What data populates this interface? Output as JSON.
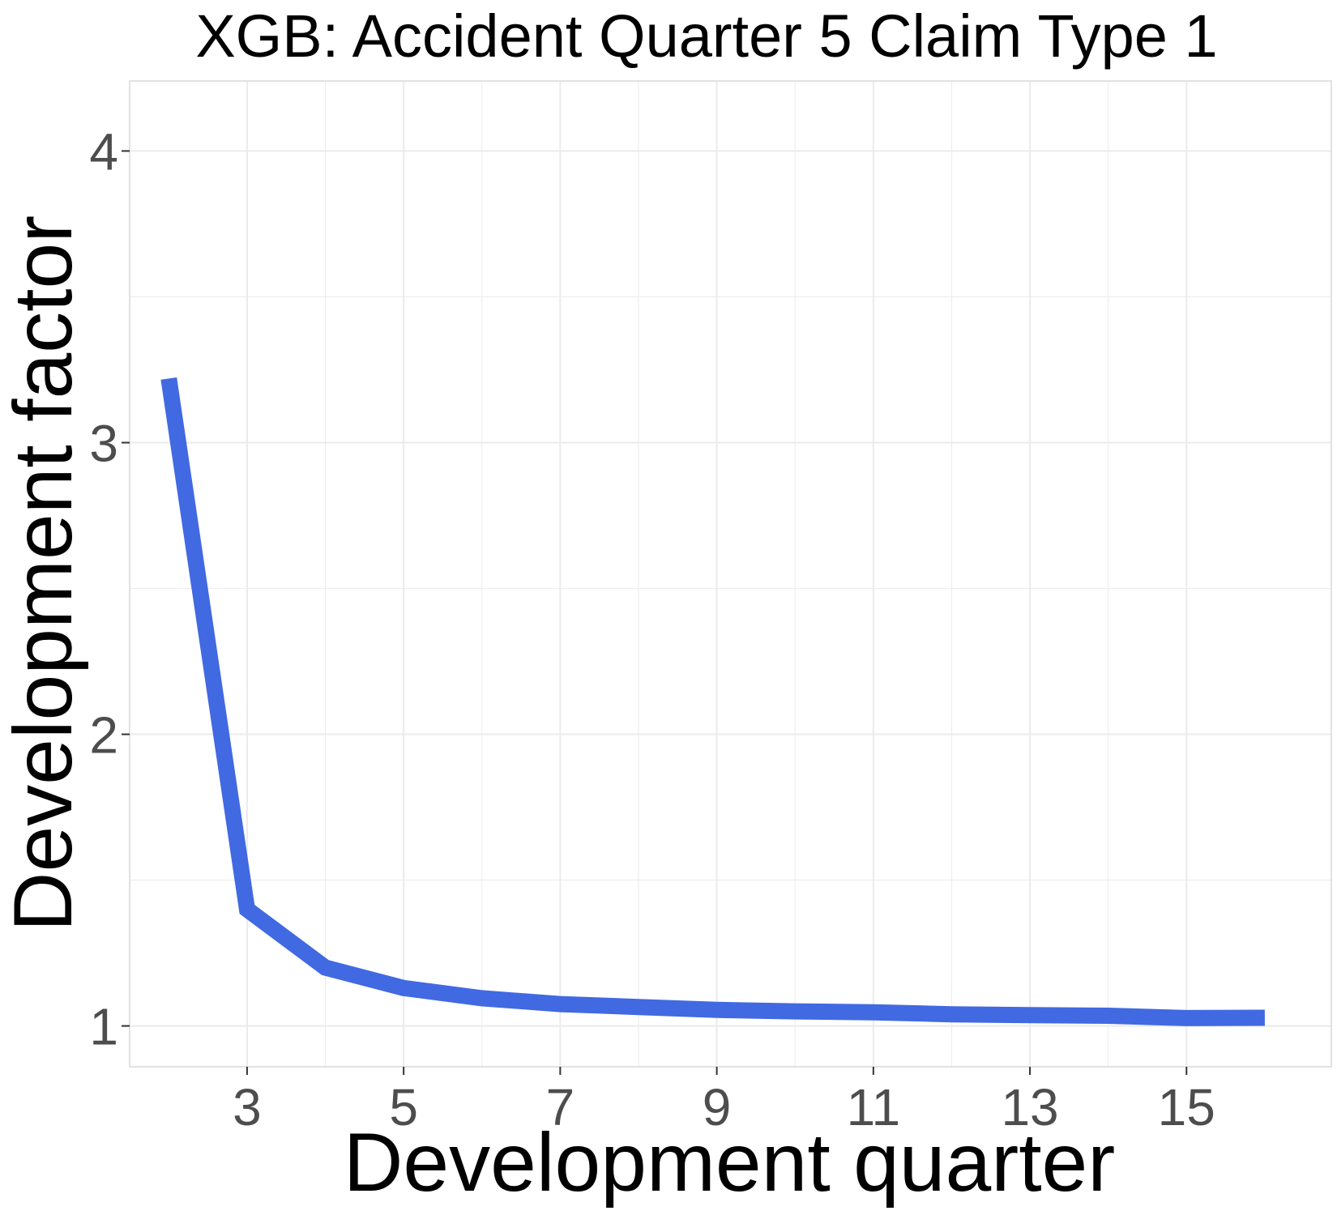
{
  "chart_data": {
    "type": "line",
    "title": "XGB: Accident Quarter 5 Claim Type 1",
    "xlabel": "Development quarter",
    "ylabel": "Development factor",
    "x": [
      2,
      3,
      4,
      5,
      6,
      7,
      8,
      9,
      10,
      11,
      12,
      13,
      14,
      15,
      16
    ],
    "series": [
      {
        "values": [
          3.22,
          1.4,
          1.2,
          1.13,
          1.095,
          1.075,
          1.065,
          1.055,
          1.05,
          1.047,
          1.04,
          1.037,
          1.035,
          1.027,
          1.028
        ],
        "color": "#4169e1"
      }
    ],
    "xticks": [
      3,
      5,
      7,
      9,
      11,
      13,
      15
    ],
    "yticks": [
      1,
      2,
      3,
      4
    ],
    "xlim": [
      1.5,
      16.85
    ],
    "ylim": [
      0.86,
      4.24
    ],
    "grid": true,
    "legend": "none",
    "colors": {
      "line": "#4169e1",
      "grid": "#ebebeb",
      "panel_border": "#d9d9d9",
      "tick_text": "#4d4d4d"
    }
  }
}
